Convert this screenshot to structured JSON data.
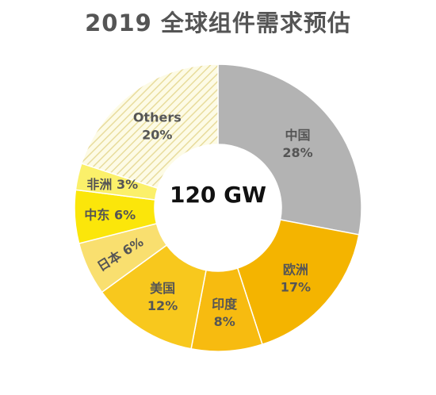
{
  "title": "2019 全球组件需求预估",
  "chart_data": {
    "type": "pie",
    "donut": true,
    "center_label": "120 GW",
    "slices": [
      {
        "name": "中国",
        "value": 28,
        "label": "28%",
        "color": "#b3b3b3",
        "text_color": "#555555"
      },
      {
        "name": "欧洲",
        "value": 17,
        "label": "17%",
        "color": "#f4b400",
        "text_color": "#555555"
      },
      {
        "name": "印度",
        "value": 8,
        "label": "8%",
        "color": "#f7bb10",
        "text_color": "#555555"
      },
      {
        "name": "美国",
        "value": 12,
        "label": "12%",
        "color": "#f8c81d",
        "text_color": "#555555"
      },
      {
        "name": "日本",
        "value": 6,
        "label": "6%",
        "color": "#f9df6f",
        "text_color": "#555555"
      },
      {
        "name": "中东",
        "value": 6,
        "label": "6%",
        "color": "#fbe60a",
        "text_color": "#555555"
      },
      {
        "name": "非洲",
        "value": 3,
        "label": "3%",
        "color": "#fbf06a",
        "text_color": "#555555"
      },
      {
        "name": "Others",
        "value": 20,
        "label": "20%",
        "color": "hatch",
        "text_color": "#555555"
      }
    ]
  }
}
